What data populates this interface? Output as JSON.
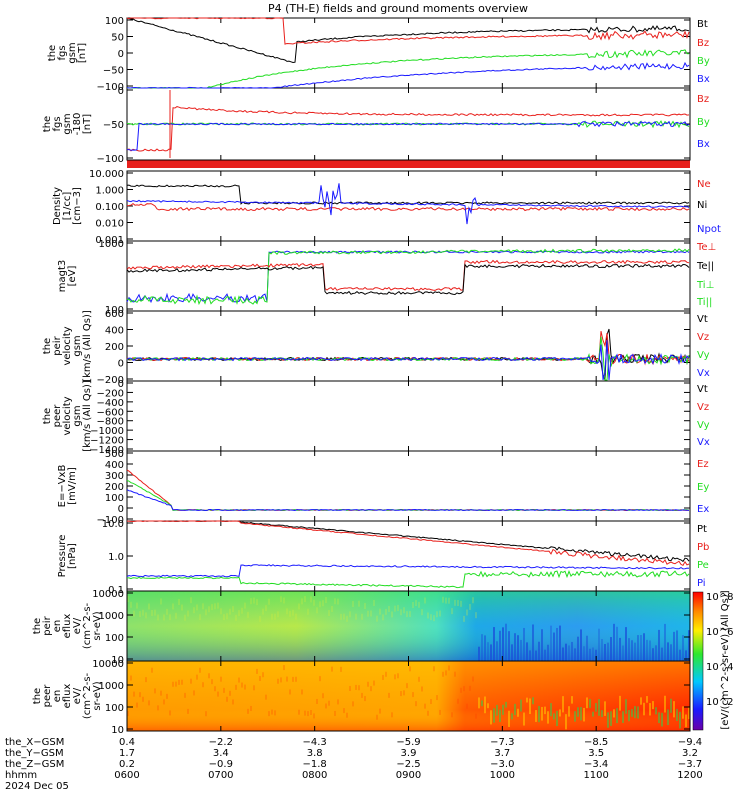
{
  "title": "P4 (TH-E) fields and ground moments overview",
  "colors": {
    "black": "#000000",
    "red": "#e8201c",
    "green": "#22dd22",
    "blue": "#1a1aff"
  },
  "chart_data": [
    {
      "type": "line",
      "id": "fgs",
      "ylabel": [
        "the",
        "fgs",
        "gsm",
        "[nT]"
      ],
      "ylim": [
        -100,
        100
      ],
      "yticks": [
        "100",
        "50",
        "0",
        "−50",
        "−100"
      ],
      "series": [
        {
          "name": "Bt",
          "color": "#000000"
        },
        {
          "name": "Bz",
          "color": "#e8201c"
        },
        {
          "name": "By",
          "color": "#22dd22"
        },
        {
          "name": "Bx",
          "color": "#1a1aff"
        }
      ]
    },
    {
      "type": "line",
      "id": "fgs-clip",
      "ylabel": [
        "the",
        "fgs",
        "gsm",
        "-180",
        "[nT]"
      ],
      "ylim": [
        -120,
        30
      ],
      "yticks": [
        "0",
        "−50",
        "−100"
      ],
      "series": [
        {
          "name": "Bz",
          "color": "#e8201c"
        },
        {
          "name": "By",
          "color": "#22dd22"
        },
        {
          "name": "Bx",
          "color": "#1a1aff"
        }
      ]
    },
    {
      "type": "line",
      "id": "density",
      "ylabel": [
        "Density",
        "[1/cc]",
        "[cm−3]"
      ],
      "scale": "log",
      "yticks": [
        "10.000",
        "1.000",
        "0.100",
        "0.010",
        "0.001"
      ],
      "series": [
        {
          "name": "Ne",
          "color": "#e8201c"
        },
        {
          "name": "Ni",
          "color": "#000000"
        },
        {
          "name": "Npot",
          "color": "#1a1aff"
        }
      ]
    },
    {
      "type": "line",
      "id": "temp",
      "ylabel": [
        "magt3",
        "[eV]"
      ],
      "scale": "log",
      "yticks": [
        "1000",
        "100"
      ],
      "series": [
        {
          "name": "Te⊥",
          "color": "#e8201c"
        },
        {
          "name": "Te||",
          "color": "#000000"
        },
        {
          "name": "Ti⊥",
          "color": "#22dd22"
        },
        {
          "name": "Ti||",
          "color": "#22dd22"
        }
      ]
    },
    {
      "type": "line",
      "id": "peir-vel",
      "ylabel": [
        "the",
        "peir",
        "velocity",
        "gsm",
        "[km/s (All Qs)]"
      ],
      "ylim": [
        -200,
        600
      ],
      "yticks": [
        "600",
        "400",
        "200",
        "0",
        "−200"
      ],
      "series": [
        {
          "name": "Vt",
          "color": "#000000"
        },
        {
          "name": "Vz",
          "color": "#e8201c"
        },
        {
          "name": "Vy",
          "color": "#22dd22"
        },
        {
          "name": "Vx",
          "color": "#1a1aff"
        }
      ]
    },
    {
      "type": "line",
      "id": "peer-vel",
      "ylabel": [
        "the",
        "peer",
        "velocity",
        "gsm",
        "[km/s (All Qs)]"
      ],
      "ylim": [
        -1400,
        0
      ],
      "yticks": [
        "0",
        "−200",
        "−400",
        "−600",
        "−800",
        "−1000",
        "−1200",
        "−1400"
      ],
      "series": [
        {
          "name": "Vt",
          "color": "#000000"
        },
        {
          "name": "Vz",
          "color": "#e8201c"
        },
        {
          "name": "Vy",
          "color": "#22dd22"
        },
        {
          "name": "Vx",
          "color": "#1a1aff"
        }
      ]
    },
    {
      "type": "line",
      "id": "efield",
      "ylabel": [
        "E=−VxB",
        "[mV/m]"
      ],
      "ylim": [
        -100,
        500
      ],
      "yticks": [
        "500",
        "400",
        "300",
        "200",
        "100",
        "0",
        "−100"
      ],
      "series": [
        {
          "name": "Ez",
          "color": "#e8201c"
        },
        {
          "name": "Ey",
          "color": "#22dd22"
        },
        {
          "name": "Ex",
          "color": "#1a1aff"
        }
      ]
    },
    {
      "type": "line",
      "id": "pressure",
      "ylabel": [
        "Pressure",
        "[nPa]"
      ],
      "scale": "log",
      "yticks": [
        "10.0",
        "1.0",
        "0.1"
      ],
      "series": [
        {
          "name": "Pt",
          "color": "#000000"
        },
        {
          "name": "Pb",
          "color": "#e8201c"
        },
        {
          "name": "Pe",
          "color": "#22dd22"
        },
        {
          "name": "Pi",
          "color": "#1a1aff"
        }
      ]
    },
    {
      "type": "heatmap",
      "id": "peir-eflux",
      "ylabel": [
        "the",
        "peir",
        "en",
        "eflux",
        "eV/",
        "(cm^2-s-",
        "sr-eV)"
      ],
      "scale": "log",
      "yticks": [
        "10000",
        "1000",
        "100",
        "10"
      ]
    },
    {
      "type": "heatmap",
      "id": "peer-eflux",
      "ylabel": [
        "the",
        "peer",
        "en",
        "eflux",
        "eV/",
        "(cm^2-s-",
        "sr-eV)"
      ],
      "scale": "log",
      "yticks": [
        "10000",
        "1000",
        "100",
        "10"
      ]
    }
  ],
  "colorbar": {
    "label": "[eV/(cm^2-s-sr-eV) (All Qs)]",
    "ticks": [
      "10^8",
      "10^6",
      "10^4",
      "10^2"
    ]
  },
  "xaxis": {
    "rows": [
      {
        "label": "the_X−GSM",
        "values": [
          "0.4",
          "−2.2",
          "−4.3",
          "−5.9",
          "−7.3",
          "−8.5",
          "−9.4"
        ]
      },
      {
        "label": "the_Y−GSM",
        "values": [
          "1.7",
          "3.4",
          "3.8",
          "3.9",
          "3.7",
          "3.5",
          "3.2"
        ]
      },
      {
        "label": "the_Z−GSM",
        "values": [
          "0.2",
          "−0.9",
          "−1.8",
          "−2.5",
          "−3.0",
          "−3.4",
          "−3.7"
        ]
      },
      {
        "label": "hhmm",
        "values": [
          "0600",
          "0700",
          "0800",
          "0900",
          "1000",
          "1100",
          "1200"
        ]
      }
    ],
    "date": "2024 Dec 05"
  }
}
